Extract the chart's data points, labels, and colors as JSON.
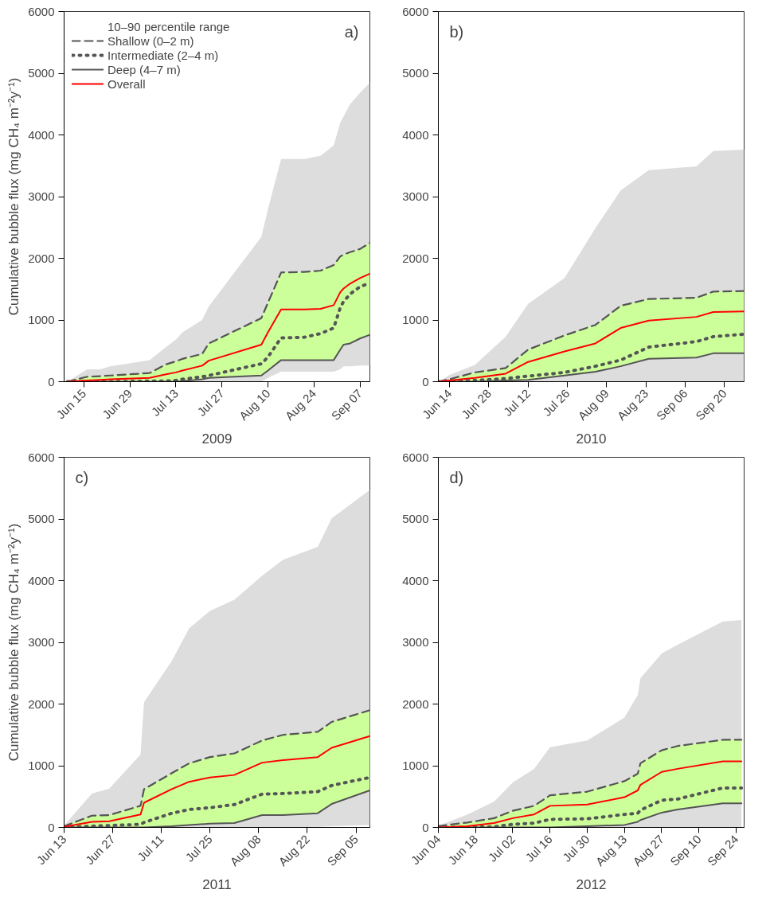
{
  "chart_data": [
    {
      "type": "line",
      "xlabel": "2009",
      "ylabel": "Cumulative bubble flux (mg CH₄ m⁻²y⁻¹)",
      "annotations": [
        "10–90 percentile range",
        "a)"
      ],
      "legend": "top left",
      "grid": false,
      "x": [
        "2009-06-10",
        "2009-06-16",
        "2009-06-20",
        "2009-06-23",
        "2009-07-05",
        "2009-07-10",
        "2009-07-13",
        "2009-07-15",
        "2009-07-21",
        "2009-07-23",
        "2009-08-08",
        "2009-08-10",
        "2009-08-14",
        "2009-08-21",
        "2009-08-26",
        "2009-08-30",
        "2009-09-01",
        "2009-09-02",
        "2009-09-04",
        "2009-09-07",
        "2009-09-10"
      ],
      "xlim": [
        "2009-06-09",
        "2009-09-10"
      ],
      "xticks": [
        {
          "value": "2009-06-15",
          "label": "Jun 15"
        },
        {
          "value": "2009-06-29",
          "label": "Jun 29"
        },
        {
          "value": "2009-07-13",
          "label": "Jul 13"
        },
        {
          "value": "2009-07-27",
          "label": "Jul 27"
        },
        {
          "value": "2009-08-10",
          "label": "Aug 10"
        },
        {
          "value": "2009-08-24",
          "label": "Aug 24"
        },
        {
          "value": "2009-09-07",
          "label": "Sep 07"
        }
      ],
      "ylim": [
        0,
        6000
      ],
      "yticks": [
        0,
        1000,
        2000,
        3000,
        4000,
        5000,
        6000
      ],
      "series": [
        {
          "name": "Shallow (0–2 m)",
          "color": "#555555",
          "line_style": "dashed",
          "values": [
            0,
            80,
            90,
            100,
            140,
            280,
            330,
            370,
            450,
            620,
            1030,
            1280,
            1770,
            1780,
            1800,
            1890,
            2030,
            2060,
            2100,
            2150,
            2250
          ]
        },
        {
          "name": "Intermediate (2–4 m)",
          "color": "#555555",
          "line_style": "dotted",
          "values": [
            0,
            0,
            0,
            0,
            10,
            10,
            20,
            40,
            80,
            100,
            290,
            400,
            710,
            720,
            780,
            870,
            1200,
            1300,
            1420,
            1540,
            1600
          ],
          "lower": [
            0,
            0,
            0,
            0,
            0,
            0,
            0,
            10,
            40,
            60,
            100,
            180,
            350,
            350,
            350,
            350,
            520,
            600,
            620,
            700,
            760
          ],
          "upper": [
            0,
            80,
            90,
            100,
            140,
            280,
            330,
            370,
            450,
            620,
            1030,
            1280,
            1770,
            1780,
            1800,
            1890,
            2030,
            2060,
            2100,
            2150,
            2250
          ]
        },
        {
          "name": "Deep (4–7 m)",
          "color": "#555555",
          "line_style": "solid",
          "values": [
            0,
            0,
            0,
            0,
            0,
            0,
            0,
            10,
            40,
            60,
            100,
            180,
            350,
            350,
            350,
            350,
            520,
            600,
            620,
            700,
            760
          ]
        },
        {
          "name": "Overall",
          "color": "#ff0000",
          "line_style": "solid",
          "values": [
            0,
            20,
            30,
            40,
            60,
            120,
            150,
            180,
            260,
            340,
            600,
            800,
            1170,
            1170,
            1180,
            1240,
            1450,
            1510,
            1590,
            1680,
            1750
          ],
          "lower": [
            0,
            0,
            0,
            0,
            0,
            0,
            0,
            0,
            0,
            0,
            0,
            60,
            160,
            160,
            160,
            160,
            200,
            250,
            250,
            260,
            260
          ],
          "upper": [
            0,
            200,
            200,
            250,
            350,
            560,
            680,
            800,
            1000,
            1220,
            2350,
            2800,
            3610,
            3610,
            3660,
            3830,
            4200,
            4300,
            4500,
            4680,
            4850
          ]
        }
      ]
    },
    {
      "type": "line",
      "xlabel": "2010",
      "annotations": [
        "b)"
      ],
      "grid": false,
      "x": [
        "2010-06-10",
        "2010-06-14",
        "2010-06-23",
        "2010-07-04",
        "2010-07-12",
        "2010-07-25",
        "2010-08-05",
        "2010-08-14",
        "2010-08-24",
        "2010-09-10",
        "2010-09-16",
        "2010-09-27"
      ],
      "xlim": [
        "2010-06-10",
        "2010-09-27"
      ],
      "xticks": [
        {
          "value": "2010-06-14",
          "label": "Jun 14"
        },
        {
          "value": "2010-06-28",
          "label": "Jun 28"
        },
        {
          "value": "2010-07-12",
          "label": "Jul 12"
        },
        {
          "value": "2010-07-26",
          "label": "Jul 26"
        },
        {
          "value": "2010-08-09",
          "label": "Aug 09"
        },
        {
          "value": "2010-08-23",
          "label": "Aug 23"
        },
        {
          "value": "2010-09-06",
          "label": "Sep 06"
        },
        {
          "value": "2010-09-20",
          "label": "Sep 20"
        }
      ],
      "ylim": [
        0,
        6000
      ],
      "yticks": [
        0,
        1000,
        2000,
        3000,
        4000,
        5000,
        6000
      ],
      "series": [
        {
          "color": "#555555",
          "line_style": "dashed",
          "values": [
            0,
            40,
            150,
            220,
            520,
            750,
            920,
            1230,
            1340,
            1360,
            1460,
            1470
          ]
        },
        {
          "color": "#555555",
          "line_style": "dotted",
          "values": [
            0,
            0,
            20,
            50,
            90,
            150,
            250,
            350,
            560,
            650,
            730,
            770
          ],
          "lower": [
            0,
            0,
            0,
            20,
            30,
            100,
            160,
            250,
            370,
            390,
            460,
            460
          ],
          "upper": [
            0,
            40,
            150,
            220,
            520,
            750,
            920,
            1230,
            1340,
            1360,
            1460,
            1470
          ]
        },
        {
          "color": "#555555",
          "line_style": "solid",
          "values": [
            0,
            0,
            0,
            20,
            30,
            100,
            160,
            250,
            370,
            390,
            460,
            460
          ]
        },
        {
          "color": "#ff0000",
          "line_style": "solid",
          "values": [
            0,
            20,
            60,
            130,
            320,
            490,
            620,
            870,
            990,
            1050,
            1130,
            1140
          ],
          "lower": [
            0,
            0,
            0,
            0,
            0,
            0,
            0,
            0,
            0,
            0,
            0,
            0
          ],
          "upper": [
            0,
            110,
            270,
            730,
            1260,
            1680,
            2490,
            3100,
            3430,
            3490,
            3740,
            3760
          ]
        }
      ]
    },
    {
      "type": "line",
      "xlabel": "2011",
      "ylabel": "Cumulative bubble flux (mg CH₄ m⁻²y⁻¹)",
      "annotations": [
        "c)"
      ],
      "grid": false,
      "x": [
        "2011-06-13",
        "2011-06-21",
        "2011-06-26",
        "2011-07-05",
        "2011-07-06",
        "2011-07-14",
        "2011-07-19",
        "2011-07-25",
        "2011-08-01",
        "2011-08-09",
        "2011-08-15",
        "2011-08-25",
        "2011-08-29",
        "2011-09-09"
      ],
      "xlim": [
        "2011-06-13",
        "2011-09-09"
      ],
      "xticks": [
        {
          "value": "2011-06-13",
          "label": "Jun 13"
        },
        {
          "value": "2011-06-27",
          "label": "Jun 27"
        },
        {
          "value": "2011-07-11",
          "label": "Jul 11"
        },
        {
          "value": "2011-07-25",
          "label": "Jul 25"
        },
        {
          "value": "2011-08-08",
          "label": "Aug 08"
        },
        {
          "value": "2011-08-22",
          "label": "Aug 22"
        },
        {
          "value": "2011-09-05",
          "label": "Sep 05"
        }
      ],
      "ylim": [
        0,
        6000
      ],
      "yticks": [
        0,
        1000,
        2000,
        3000,
        4000,
        5000,
        6000
      ],
      "series": [
        {
          "color": "#555555",
          "line_style": "dashed",
          "values": [
            20,
            190,
            200,
            350,
            620,
            880,
            1040,
            1140,
            1200,
            1410,
            1500,
            1550,
            1710,
            1900
          ]
        },
        {
          "color": "#555555",
          "line_style": "dotted",
          "values": [
            0,
            20,
            30,
            50,
            80,
            230,
            290,
            320,
            370,
            540,
            550,
            580,
            680,
            810
          ],
          "lower": [
            0,
            0,
            0,
            0,
            0,
            20,
            40,
            60,
            70,
            200,
            200,
            230,
            380,
            600
          ],
          "upper": [
            20,
            190,
            200,
            350,
            620,
            880,
            1040,
            1140,
            1200,
            1410,
            1500,
            1550,
            1710,
            1900
          ]
        },
        {
          "color": "#555555",
          "line_style": "solid",
          "values": [
            0,
            0,
            0,
            0,
            0,
            20,
            40,
            60,
            70,
            200,
            200,
            230,
            380,
            600
          ]
        },
        {
          "color": "#ff0000",
          "line_style": "solid",
          "values": [
            10,
            90,
            100,
            210,
            400,
            620,
            740,
            810,
            850,
            1050,
            1090,
            1140,
            1290,
            1480
          ],
          "lower": [
            0,
            0,
            0,
            0,
            0,
            0,
            0,
            0,
            0,
            0,
            0,
            10,
            20,
            40
          ],
          "upper": [
            30,
            550,
            630,
            1180,
            2030,
            2700,
            3230,
            3510,
            3690,
            4080,
            4340,
            4550,
            5010,
            5470
          ]
        }
      ]
    },
    {
      "type": "line",
      "xlabel": "2012",
      "annotations": [
        "d)"
      ],
      "grid": false,
      "x": [
        "2012-06-04",
        "2012-06-15",
        "2012-06-25",
        "2012-07-02",
        "2012-07-10",
        "2012-07-16",
        "2012-07-30",
        "2012-08-13",
        "2012-08-18",
        "2012-08-19",
        "2012-08-27",
        "2012-09-02",
        "2012-09-19",
        "2012-09-26"
      ],
      "xlim": [
        "2012-06-04",
        "2012-09-27"
      ],
      "xticks": [
        {
          "value": "2012-06-04",
          "label": "Jun 04"
        },
        {
          "value": "2012-06-18",
          "label": "Jun 18"
        },
        {
          "value": "2012-07-02",
          "label": "Jul 02"
        },
        {
          "value": "2012-07-16",
          "label": "Jul 16"
        },
        {
          "value": "2012-07-30",
          "label": "Jul 30"
        },
        {
          "value": "2012-08-13",
          "label": "Aug 13"
        },
        {
          "value": "2012-08-27",
          "label": "Aug 27"
        },
        {
          "value": "2012-09-10",
          "label": "Sep 10"
        },
        {
          "value": "2012-09-24",
          "label": "Sep 24"
        }
      ],
      "ylim": [
        0,
        6000
      ],
      "yticks": [
        0,
        1000,
        2000,
        3000,
        4000,
        5000,
        6000
      ],
      "series": [
        {
          "color": "#555555",
          "line_style": "dashed",
          "values": [
            20,
            80,
            150,
            270,
            350,
            520,
            580,
            750,
            870,
            1040,
            1250,
            1320,
            1420,
            1420
          ]
        },
        {
          "color": "#555555",
          "line_style": "dotted",
          "values": [
            0,
            0,
            10,
            50,
            70,
            130,
            140,
            210,
            230,
            280,
            440,
            460,
            640,
            640
          ],
          "lower": [
            0,
            0,
            0,
            0,
            0,
            0,
            20,
            40,
            90,
            120,
            240,
            290,
            390,
            390
          ],
          "upper": [
            20,
            80,
            150,
            270,
            350,
            520,
            580,
            750,
            870,
            1040,
            1250,
            1320,
            1420,
            1420
          ]
        },
        {
          "color": "#555555",
          "line_style": "solid",
          "values": [
            0,
            0,
            0,
            0,
            0,
            0,
            20,
            40,
            90,
            120,
            240,
            290,
            390,
            390
          ]
        },
        {
          "color": "#ff0000",
          "line_style": "solid",
          "values": [
            0,
            20,
            70,
            150,
            210,
            350,
            370,
            490,
            600,
            690,
            900,
            950,
            1070,
            1070
          ],
          "lower": [
            0,
            0,
            0,
            0,
            0,
            0,
            0,
            0,
            0,
            0,
            0,
            0,
            0,
            0
          ],
          "upper": [
            30,
            210,
            420,
            730,
            950,
            1300,
            1410,
            1780,
            2150,
            2420,
            2820,
            2960,
            3340,
            3360
          ]
        }
      ]
    }
  ]
}
